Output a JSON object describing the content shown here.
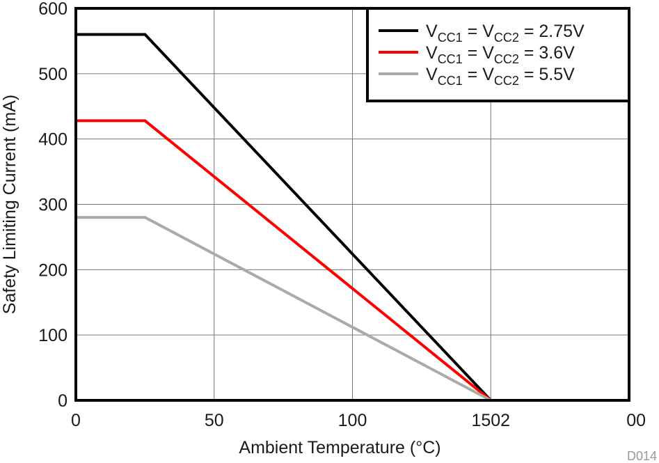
{
  "chart_data": {
    "type": "line",
    "xlabel": "Ambient Temperature (°C)",
    "ylabel": "Safety Limiting Current (mA)",
    "xlim": [
      0,
      200
    ],
    "ylim": [
      0,
      600
    ],
    "x_tick_labels": [
      "0",
      "50",
      "100",
      "1502",
      "00"
    ],
    "y_ticks": [
      0,
      100,
      200,
      300,
      400,
      500,
      600
    ],
    "grid": true,
    "legend_position": "top-right",
    "figure_id": "D014",
    "series": [
      {
        "name_parts": [
          "V",
          "CC1",
          " = V",
          "CC2",
          " = 2.75V"
        ],
        "color": "#000000",
        "points": [
          [
            0,
            560
          ],
          [
            25,
            560
          ],
          [
            150,
            0
          ]
        ]
      },
      {
        "name_parts": [
          "V",
          "CC1",
          " = V",
          "CC2",
          " = 3.6V"
        ],
        "color": "#ff0000",
        "points": [
          [
            0,
            428
          ],
          [
            25,
            428
          ],
          [
            150,
            0
          ]
        ]
      },
      {
        "name_parts": [
          "V",
          "CC1",
          " = V",
          "CC2",
          " = 5.5V"
        ],
        "color": "#aaaaaa",
        "points": [
          [
            0,
            280
          ],
          [
            25,
            280
          ],
          [
            150,
            0
          ]
        ]
      }
    ]
  }
}
